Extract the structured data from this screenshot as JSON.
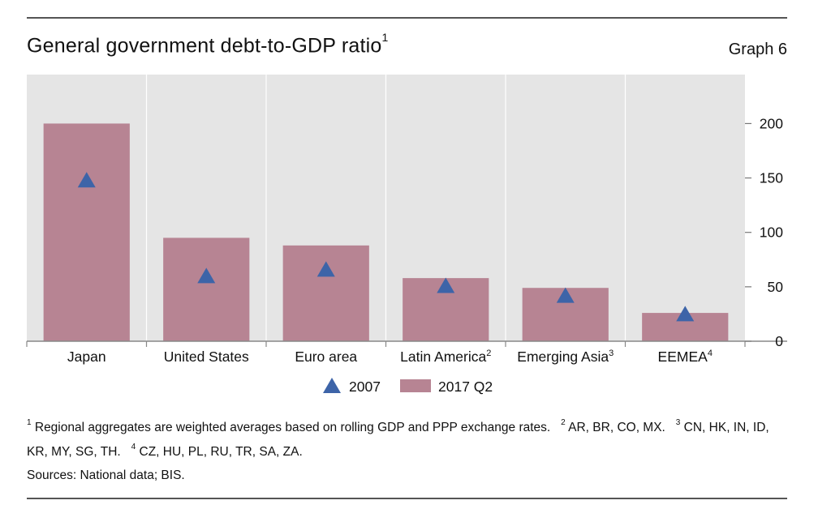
{
  "header": {
    "title": "General government debt-to-GDP ratio",
    "title_note": "1",
    "graph_label": "Graph 6"
  },
  "chart_data": {
    "type": "bar",
    "categories": [
      "Japan",
      "United States",
      "Euro area",
      "Latin America",
      "Emerging Asia",
      "EEMEA"
    ],
    "category_notes": [
      "",
      "",
      "",
      "2",
      "3",
      "4"
    ],
    "series": [
      {
        "name": "2017 Q2",
        "kind": "bar",
        "color": "#b78493",
        "values": [
          200,
          95,
          88,
          58,
          49,
          26
        ]
      },
      {
        "name": "2007",
        "kind": "triangle-marker",
        "color": "#3d64a8",
        "values": [
          148,
          60,
          66,
          51,
          42,
          25
        ]
      }
    ],
    "yticks": [
      0,
      50,
      100,
      150,
      200
    ],
    "ylim": [
      0,
      245
    ],
    "yaxis_position": "right",
    "grid": "vertical separators only",
    "legend_position": "bottom",
    "background_color": "#e5e5e5"
  },
  "footnotes": {
    "n1": "1",
    "t1": " Regional aggregates are weighted averages based on rolling GDP and PPP exchange rates.",
    "n2": "2",
    "t2": " AR, BR, CO, MX.",
    "n3": "3",
    "t3": " CN, HK, IN, ID, KR, MY, SG, TH.",
    "n4": "4",
    "t4": " CZ, HU, PL, RU, TR, SA, ZA."
  },
  "sources": "Sources: National data; BIS."
}
